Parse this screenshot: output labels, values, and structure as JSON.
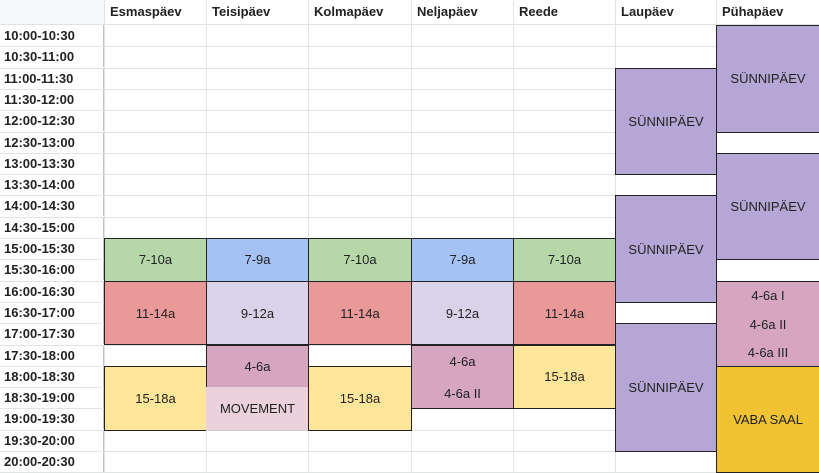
{
  "days": [
    "Esmaspäev",
    "Teisipäev",
    "Kolmapäev",
    "Neljapäev",
    "Reede",
    "Laupäev",
    "Pühapäev"
  ],
  "times": [
    "10:00-10:30",
    "10:30-11:00",
    "11:00-11:30",
    "11:30-12:00",
    "12:00-12:30",
    "12:30-13:00",
    "13:00-13:30",
    "13:30-14:00",
    "14:00-14:30",
    "14:30-15:00",
    "15:00-15:30",
    "15:30-16:00",
    "16:00-16:30",
    "16:30-17:00",
    "17:00-17:30",
    "17:30-18:00",
    "18:00-18:30",
    "18:30-19:00",
    "19:00-19:30",
    "19:30-20:00",
    "20:00-20:30"
  ],
  "colors": {
    "green": "#b6d7a8",
    "blue": "#a4c2f4",
    "red": "#ea9999",
    "lavender": "#d9d2e9",
    "mauve": "#d5a6bd",
    "yellow": "#ffe599",
    "pink_light": "#ead1dc",
    "purple": "#b4a7d6",
    "gold": "#f1c232"
  },
  "events": [
    {
      "id": "esm-7-10a",
      "day": 0,
      "start": 10,
      "end": 12,
      "label": "7-10a",
      "color": "green"
    },
    {
      "id": "esm-11-14a",
      "day": 0,
      "start": 12,
      "end": 15,
      "label": "11-14a",
      "color": "red"
    },
    {
      "id": "esm-15-18a",
      "day": 0,
      "start": 16,
      "end": 19,
      "label": "15-18a",
      "color": "yellow"
    },
    {
      "id": "tei-7-9a",
      "day": 1,
      "start": 10,
      "end": 12,
      "label": "7-9a",
      "color": "blue"
    },
    {
      "id": "tei-9-12a",
      "day": 1,
      "start": 12,
      "end": 15,
      "label": "9-12a",
      "color": "lavender"
    },
    {
      "id": "tei-4-6a",
      "day": 1,
      "start": 15,
      "end": 17,
      "label": "4-6a",
      "color": "mauve"
    },
    {
      "id": "tei-movement",
      "day": 1,
      "start": 17,
      "end": 19,
      "label": "MOVEMENT",
      "color": "pink_light",
      "noborder": true
    },
    {
      "id": "kol-7-10a",
      "day": 2,
      "start": 10,
      "end": 12,
      "label": "7-10a",
      "color": "green"
    },
    {
      "id": "kol-11-14a",
      "day": 2,
      "start": 12,
      "end": 15,
      "label": "11-14a",
      "color": "red"
    },
    {
      "id": "kol-15-18a",
      "day": 2,
      "start": 16,
      "end": 19,
      "label": "15-18a",
      "color": "yellow"
    },
    {
      "id": "nel-7-9a",
      "day": 3,
      "start": 10,
      "end": 12,
      "label": "7-9a",
      "color": "blue"
    },
    {
      "id": "nel-9-12a",
      "day": 3,
      "start": 12,
      "end": 15,
      "label": "9-12a",
      "color": "lavender"
    },
    {
      "id": "nel-4-6a",
      "day": 3,
      "start": 15,
      "end": 18,
      "label": "4-6a",
      "label2": "4-6a II",
      "color": "mauve"
    },
    {
      "id": "ree-7-10a",
      "day": 4,
      "start": 10,
      "end": 12,
      "label": "7-10a",
      "color": "green"
    },
    {
      "id": "ree-11-14a",
      "day": 4,
      "start": 12,
      "end": 15,
      "label": "11-14a",
      "color": "red"
    },
    {
      "id": "ree-15-18a",
      "day": 4,
      "start": 15,
      "end": 18,
      "label": "15-18a",
      "color": "yellow"
    },
    {
      "id": "lau-sunnipaev-1",
      "day": 5,
      "start": 2,
      "end": 7,
      "label": "SÜNNIPÄEV",
      "color": "purple"
    },
    {
      "id": "lau-sunnipaev-2",
      "day": 5,
      "start": 8,
      "end": 13,
      "label": "SÜNNIPÄEV",
      "color": "purple"
    },
    {
      "id": "lau-sunnipaev-3",
      "day": 5,
      "start": 14,
      "end": 20,
      "label": "SÜNNIPÄEV",
      "color": "purple"
    },
    {
      "id": "pyh-sunnipaev-1",
      "day": 6,
      "start": 0,
      "end": 5,
      "label": "SÜNNIPÄEV",
      "color": "purple"
    },
    {
      "id": "pyh-sunnipaev-2",
      "day": 6,
      "start": 6,
      "end": 11,
      "label": "SÜNNIPÄEV",
      "color": "purple"
    },
    {
      "id": "pyh-4-6a",
      "day": 6,
      "start": 12,
      "end": 16,
      "label": "4-6a I",
      "label2": "4-6a II",
      "label3": "4-6a III",
      "color": "mauve"
    },
    {
      "id": "pyh-vaba-saal",
      "day": 6,
      "start": 16,
      "end": 21,
      "label": "VABA SAAL",
      "color": "gold"
    }
  ]
}
